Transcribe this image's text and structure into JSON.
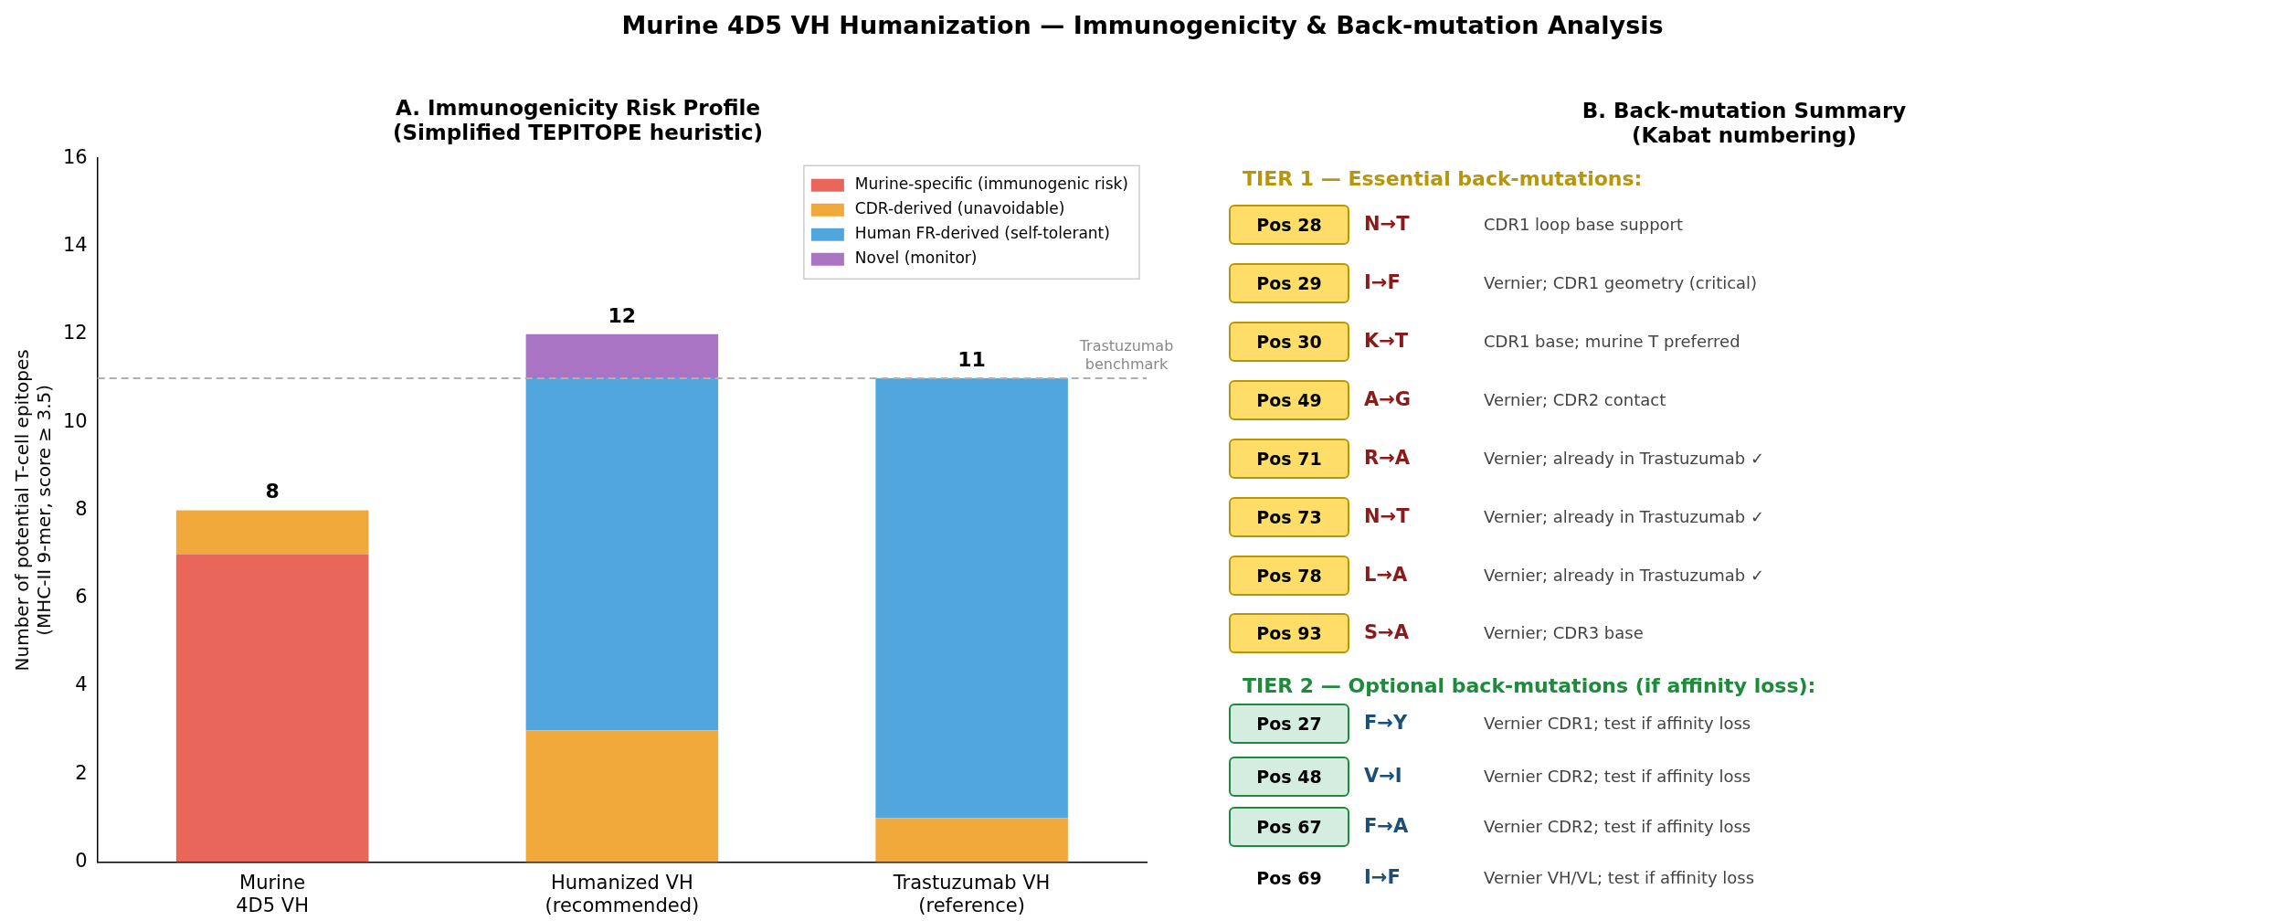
{
  "chart_data": [
    {
      "type": "other",
      "title": "Murine 4D5 VH Humanization — Immunogenicity & Back-mutation Analysis"
    },
    {
      "type": "bar",
      "title": "A. Immunogenicity Risk Profile\n(Simplified TEPITOPE heuristic)",
      "ylabel": "Number of potential T-cell epitopes\n(MHC-II 9-mer, score ≥ 3.5)",
      "categories": [
        "Murine\n4D5 VH",
        "Humanized VH\n(recommended)",
        "Trastuzumab VH\n(reference)"
      ],
      "stacked": true,
      "series": [
        {
          "name": "Murine-specific (immunogenic risk)",
          "color": "#e8665a",
          "values": [
            7,
            null,
            null
          ]
        },
        {
          "name": "CDR-derived (unavoidable)",
          "color": "#f2a93b",
          "values": [
            1,
            3,
            1
          ]
        },
        {
          "name": "Human FR-derived (self-tolerant)",
          "color": "#52a6de",
          "values": [
            null,
            8,
            10
          ]
        },
        {
          "name": "Novel (monitor)",
          "color": "#a974c3",
          "values": [
            null,
            1,
            null
          ]
        }
      ],
      "ylim": [
        0,
        16
      ],
      "yticks": [
        0,
        2,
        4,
        6,
        8,
        10,
        12,
        14,
        16
      ],
      "grid": false,
      "legend": "top right",
      "totals": [
        "8",
        "12",
        "11"
      ],
      "ref_lines": [
        {
          "axis": "y",
          "value": 11,
          "label": "Trastuzumab\nbenchmark",
          "color": "#b0b0b0",
          "line_style": "dashed"
        }
      ]
    },
    {
      "type": "other",
      "title": "B. Back-mutation Summary\n(Kabat numbering)",
      "annotations": [
        "TIER 1 — Essential back-mutations:",
        "Pos 28",
        "N→T",
        "CDR1 loop base support",
        "Pos 29",
        "I→F",
        "Vernier; CDR1 geometry (critical)",
        "Pos 30",
        "K→T",
        "CDR1 base; murine T preferred",
        "Pos 49",
        "A→G",
        "Vernier; CDR2 contact",
        "Pos 71",
        "R→A",
        "Vernier; already in Trastuzumab ✓",
        "Pos 73",
        "N→T",
        "Vernier; already in Trastuzumab ✓",
        "Pos 78",
        "L→A",
        "Vernier; already in Trastuzumab ✓",
        "Pos 93",
        "S→A",
        "Vernier; CDR3 base",
        "TIER 2 — Optional back-mutations (if affinity loss):",
        "Pos 27",
        "F→Y",
        "Vernier CDR1; test if affinity loss",
        "Pos 48",
        "V→I",
        "Vernier CDR2; test if affinity loss",
        "Pos 67",
        "F→A",
        "Vernier CDR2; test if affinity loss",
        "Pos 69",
        "I→F",
        "Vernier VH/VL; test if affinity loss"
      ]
    }
  ]
}
